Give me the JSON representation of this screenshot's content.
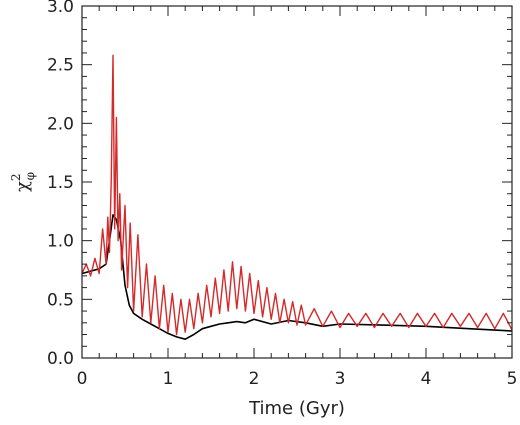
{
  "chart_data": {
    "type": "line",
    "title": "",
    "xlabel": "Time (Gyr)",
    "ylabel": "χ",
    "ylabel_superscript": "2",
    "ylabel_subscript": "φ",
    "xlim": [
      0,
      5
    ],
    "ylim": [
      0,
      3
    ],
    "xticks": [
      "0",
      "1",
      "2",
      "3",
      "4",
      "5"
    ],
    "yticks": [
      "0.0",
      "0.5",
      "1.0",
      "1.5",
      "2.0",
      "2.5",
      "3.0"
    ],
    "grid": false,
    "legend": "none",
    "series": [
      {
        "color": "#000000",
        "x": [
          0,
          0.1,
          0.2,
          0.28,
          0.32,
          0.36,
          0.4,
          0.45,
          0.5,
          0.55,
          0.6,
          0.7,
          0.8,
          0.9,
          1.0,
          1.1,
          1.2,
          1.3,
          1.4,
          1.5,
          1.6,
          1.7,
          1.8,
          1.9,
          2.0,
          2.2,
          2.4,
          2.6,
          2.8,
          3.0,
          3.5,
          4.0,
          4.5,
          5.0
        ],
        "y": [
          0.72,
          0.74,
          0.76,
          0.8,
          1.0,
          1.22,
          1.18,
          1.0,
          0.62,
          0.45,
          0.38,
          0.33,
          0.29,
          0.25,
          0.21,
          0.18,
          0.16,
          0.2,
          0.25,
          0.27,
          0.29,
          0.3,
          0.31,
          0.3,
          0.33,
          0.29,
          0.32,
          0.3,
          0.27,
          0.29,
          0.28,
          0.27,
          0.25,
          0.23
        ]
      },
      {
        "color": "#d42a2a",
        "x": [
          0,
          0.05,
          0.1,
          0.15,
          0.2,
          0.24,
          0.28,
          0.3,
          0.32,
          0.34,
          0.36,
          0.38,
          0.4,
          0.42,
          0.44,
          0.46,
          0.5,
          0.53,
          0.56,
          0.6,
          0.65,
          0.7,
          0.75,
          0.8,
          0.85,
          0.9,
          0.95,
          1.0,
          1.05,
          1.1,
          1.15,
          1.2,
          1.25,
          1.3,
          1.35,
          1.4,
          1.45,
          1.5,
          1.55,
          1.6,
          1.65,
          1.7,
          1.75,
          1.8,
          1.85,
          1.9,
          1.95,
          2.0,
          2.05,
          2.1,
          2.15,
          2.2,
          2.25,
          2.3,
          2.35,
          2.4,
          2.45,
          2.5,
          2.55,
          2.6,
          2.7,
          2.8,
          2.9,
          3.0,
          3.1,
          3.2,
          3.3,
          3.4,
          3.5,
          3.6,
          3.7,
          3.8,
          3.9,
          4.0,
          4.1,
          4.2,
          4.3,
          4.4,
          4.5,
          4.6,
          4.7,
          4.8,
          4.9,
          5.0
        ],
        "y": [
          0.72,
          0.8,
          0.7,
          0.85,
          0.72,
          1.1,
          0.8,
          1.2,
          0.9,
          1.5,
          2.58,
          1.1,
          2.05,
          1.0,
          1.4,
          0.75,
          1.3,
          0.6,
          1.15,
          0.4,
          1.05,
          0.35,
          0.8,
          0.3,
          0.7,
          0.25,
          0.62,
          0.22,
          0.55,
          0.2,
          0.5,
          0.22,
          0.5,
          0.25,
          0.55,
          0.3,
          0.62,
          0.35,
          0.68,
          0.38,
          0.75,
          0.4,
          0.82,
          0.42,
          0.78,
          0.4,
          0.72,
          0.38,
          0.66,
          0.35,
          0.6,
          0.33,
          0.55,
          0.3,
          0.5,
          0.3,
          0.48,
          0.28,
          0.45,
          0.28,
          0.42,
          0.27,
          0.4,
          0.26,
          0.38,
          0.27,
          0.38,
          0.26,
          0.38,
          0.27,
          0.38,
          0.26,
          0.38,
          0.27,
          0.38,
          0.26,
          0.38,
          0.27,
          0.38,
          0.26,
          0.38,
          0.25,
          0.38,
          0.24
        ]
      }
    ]
  }
}
